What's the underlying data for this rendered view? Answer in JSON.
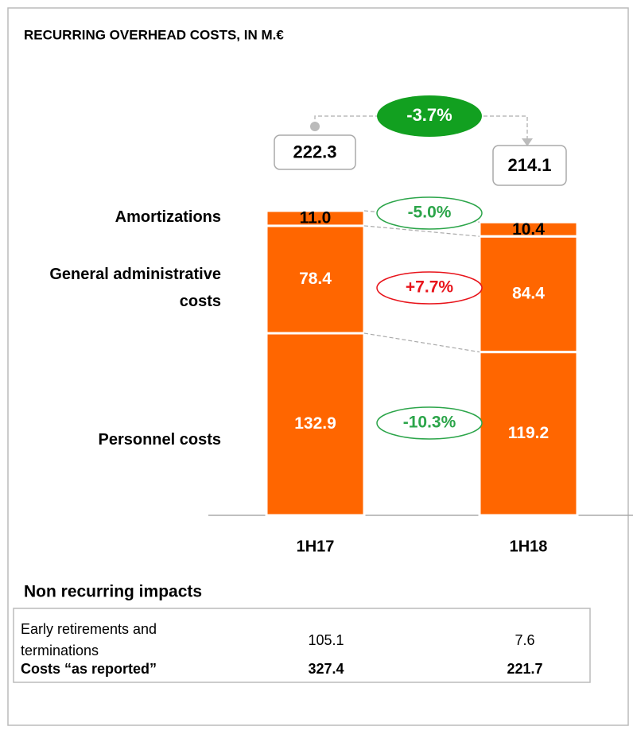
{
  "chart_data": {
    "type": "stacked_bar",
    "title": "RECURRING OVERHEAD COSTS, IN M.€",
    "categories": [
      "1H17",
      "1H18"
    ],
    "series": [
      {
        "name": "Personnel costs",
        "color": "#ff6600",
        "values": [
          132.9,
          119.2
        ]
      },
      {
        "name": "General administrative costs",
        "color": "#ff6600",
        "values": [
          78.4,
          84.4
        ]
      },
      {
        "name": "Amortizations",
        "color": "#ff6600",
        "values": [
          11,
          10.4
        ],
        "value_labels": [
          "11.0",
          "10.4"
        ]
      }
    ],
    "totals": [
      222.3,
      214.1
    ],
    "change_labels": [
      "-10.3%",
      "+7.7%",
      "-5.0%"
    ],
    "change_colors": [
      "#2ca54a",
      "#e8141b",
      "#2ca54a"
    ],
    "total_change_label": "-3.7%",
    "total_change_color": "#12a020"
  },
  "table": {
    "title": "Non recurring impacts",
    "rows": [
      [
        "Early retirements and terminations",
        "105.1",
        "7.6"
      ],
      [
        "Costs “as reported”",
        "327.4",
        "221.7"
      ]
    ]
  }
}
